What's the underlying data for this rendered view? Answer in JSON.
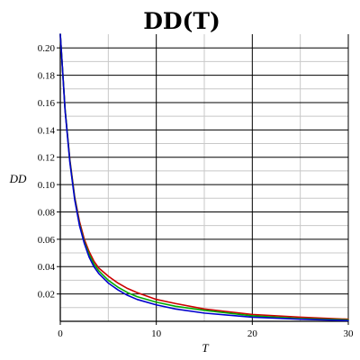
{
  "chart_data": {
    "type": "line",
    "title": "DD(T)",
    "xlabel": "T",
    "ylabel": "DD",
    "xlim": [
      0,
      30
    ],
    "ylim": [
      0,
      0.21
    ],
    "x_ticks": [
      0,
      10,
      20,
      30
    ],
    "y_ticks": [
      0.02,
      0.04,
      0.06,
      0.08,
      0.1,
      0.12,
      0.14,
      0.16,
      0.18,
      0.2
    ],
    "y_tick_labels": [
      "0.02",
      "0.04",
      "0.06",
      "0.08",
      "0.10",
      "0.12",
      "0.14",
      "0.16",
      "0.18",
      "0.20"
    ],
    "grid": true,
    "series": [
      {
        "color": "#cc0000",
        "x": [
          0,
          0.5,
          1,
          1.5,
          2,
          2.5,
          3,
          3.5,
          4,
          5,
          6,
          7,
          8,
          10,
          12,
          15,
          20,
          25,
          30
        ],
        "y": [
          0.21,
          0.155,
          0.118,
          0.091,
          0.073,
          0.06,
          0.051,
          0.044,
          0.039,
          0.033,
          0.028,
          0.024,
          0.021,
          0.016,
          0.013,
          0.009,
          0.005,
          0.003,
          0.0015
        ]
      },
      {
        "color": "#00aa00",
        "x": [
          0,
          0.5,
          1,
          1.5,
          2,
          2.5,
          3,
          3.5,
          4,
          5,
          6,
          7,
          8,
          10,
          12,
          15,
          20,
          25,
          30
        ],
        "y": [
          0.21,
          0.155,
          0.117,
          0.09,
          0.071,
          0.058,
          0.049,
          0.042,
          0.037,
          0.03,
          0.025,
          0.021,
          0.018,
          0.014,
          0.011,
          0.008,
          0.004,
          0.002,
          0.001
        ]
      },
      {
        "color": "#0000cc",
        "x": [
          0,
          0.5,
          1,
          1.5,
          2,
          2.5,
          3,
          3.5,
          4,
          5,
          6,
          7,
          8,
          10,
          12,
          15,
          20,
          25,
          30
        ],
        "y": [
          0.21,
          0.154,
          0.116,
          0.089,
          0.07,
          0.057,
          0.047,
          0.04,
          0.035,
          0.028,
          0.023,
          0.019,
          0.016,
          0.012,
          0.009,
          0.006,
          0.003,
          0.0015,
          0.0005
        ]
      }
    ]
  }
}
